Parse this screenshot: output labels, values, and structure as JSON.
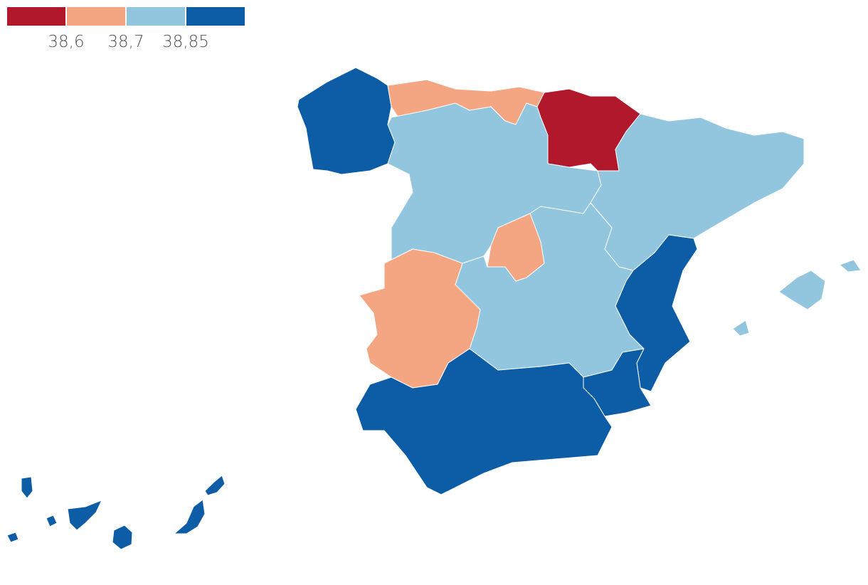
{
  "legend": {
    "colors": [
      "#b2182b",
      "#f4a582",
      "#92c5de",
      "#0c5da5"
    ],
    "thresholds": [
      {
        "value": 38.6,
        "label": "38,6"
      },
      {
        "value": 38.7,
        "label": "38,7"
      },
      {
        "value": 38.85,
        "label": "38,85"
      }
    ]
  }
}
